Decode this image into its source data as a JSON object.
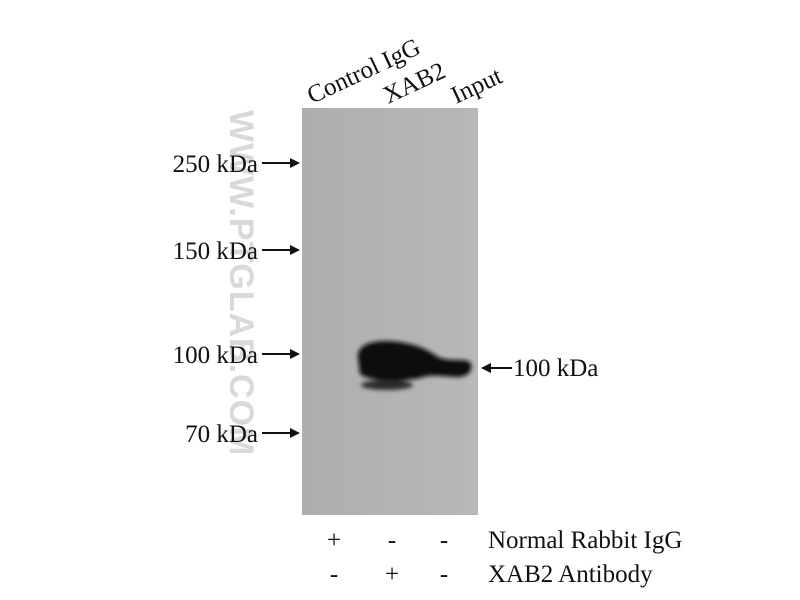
{
  "lanes": [
    "Control IgG",
    "XAB2",
    "Input"
  ],
  "markers": [
    "250 kDa",
    "150 kDa",
    "100 kDa",
    "70 kDa"
  ],
  "band_label": "100 kDa",
  "watermark": "WWW.PTGLAB.COM",
  "conditions": [
    {
      "label": "Normal Rabbit IgG",
      "signs": [
        "+",
        "-",
        "-"
      ]
    },
    {
      "label": "XAB2 Antibody",
      "signs": [
        "-",
        "+",
        "-"
      ]
    }
  ]
}
